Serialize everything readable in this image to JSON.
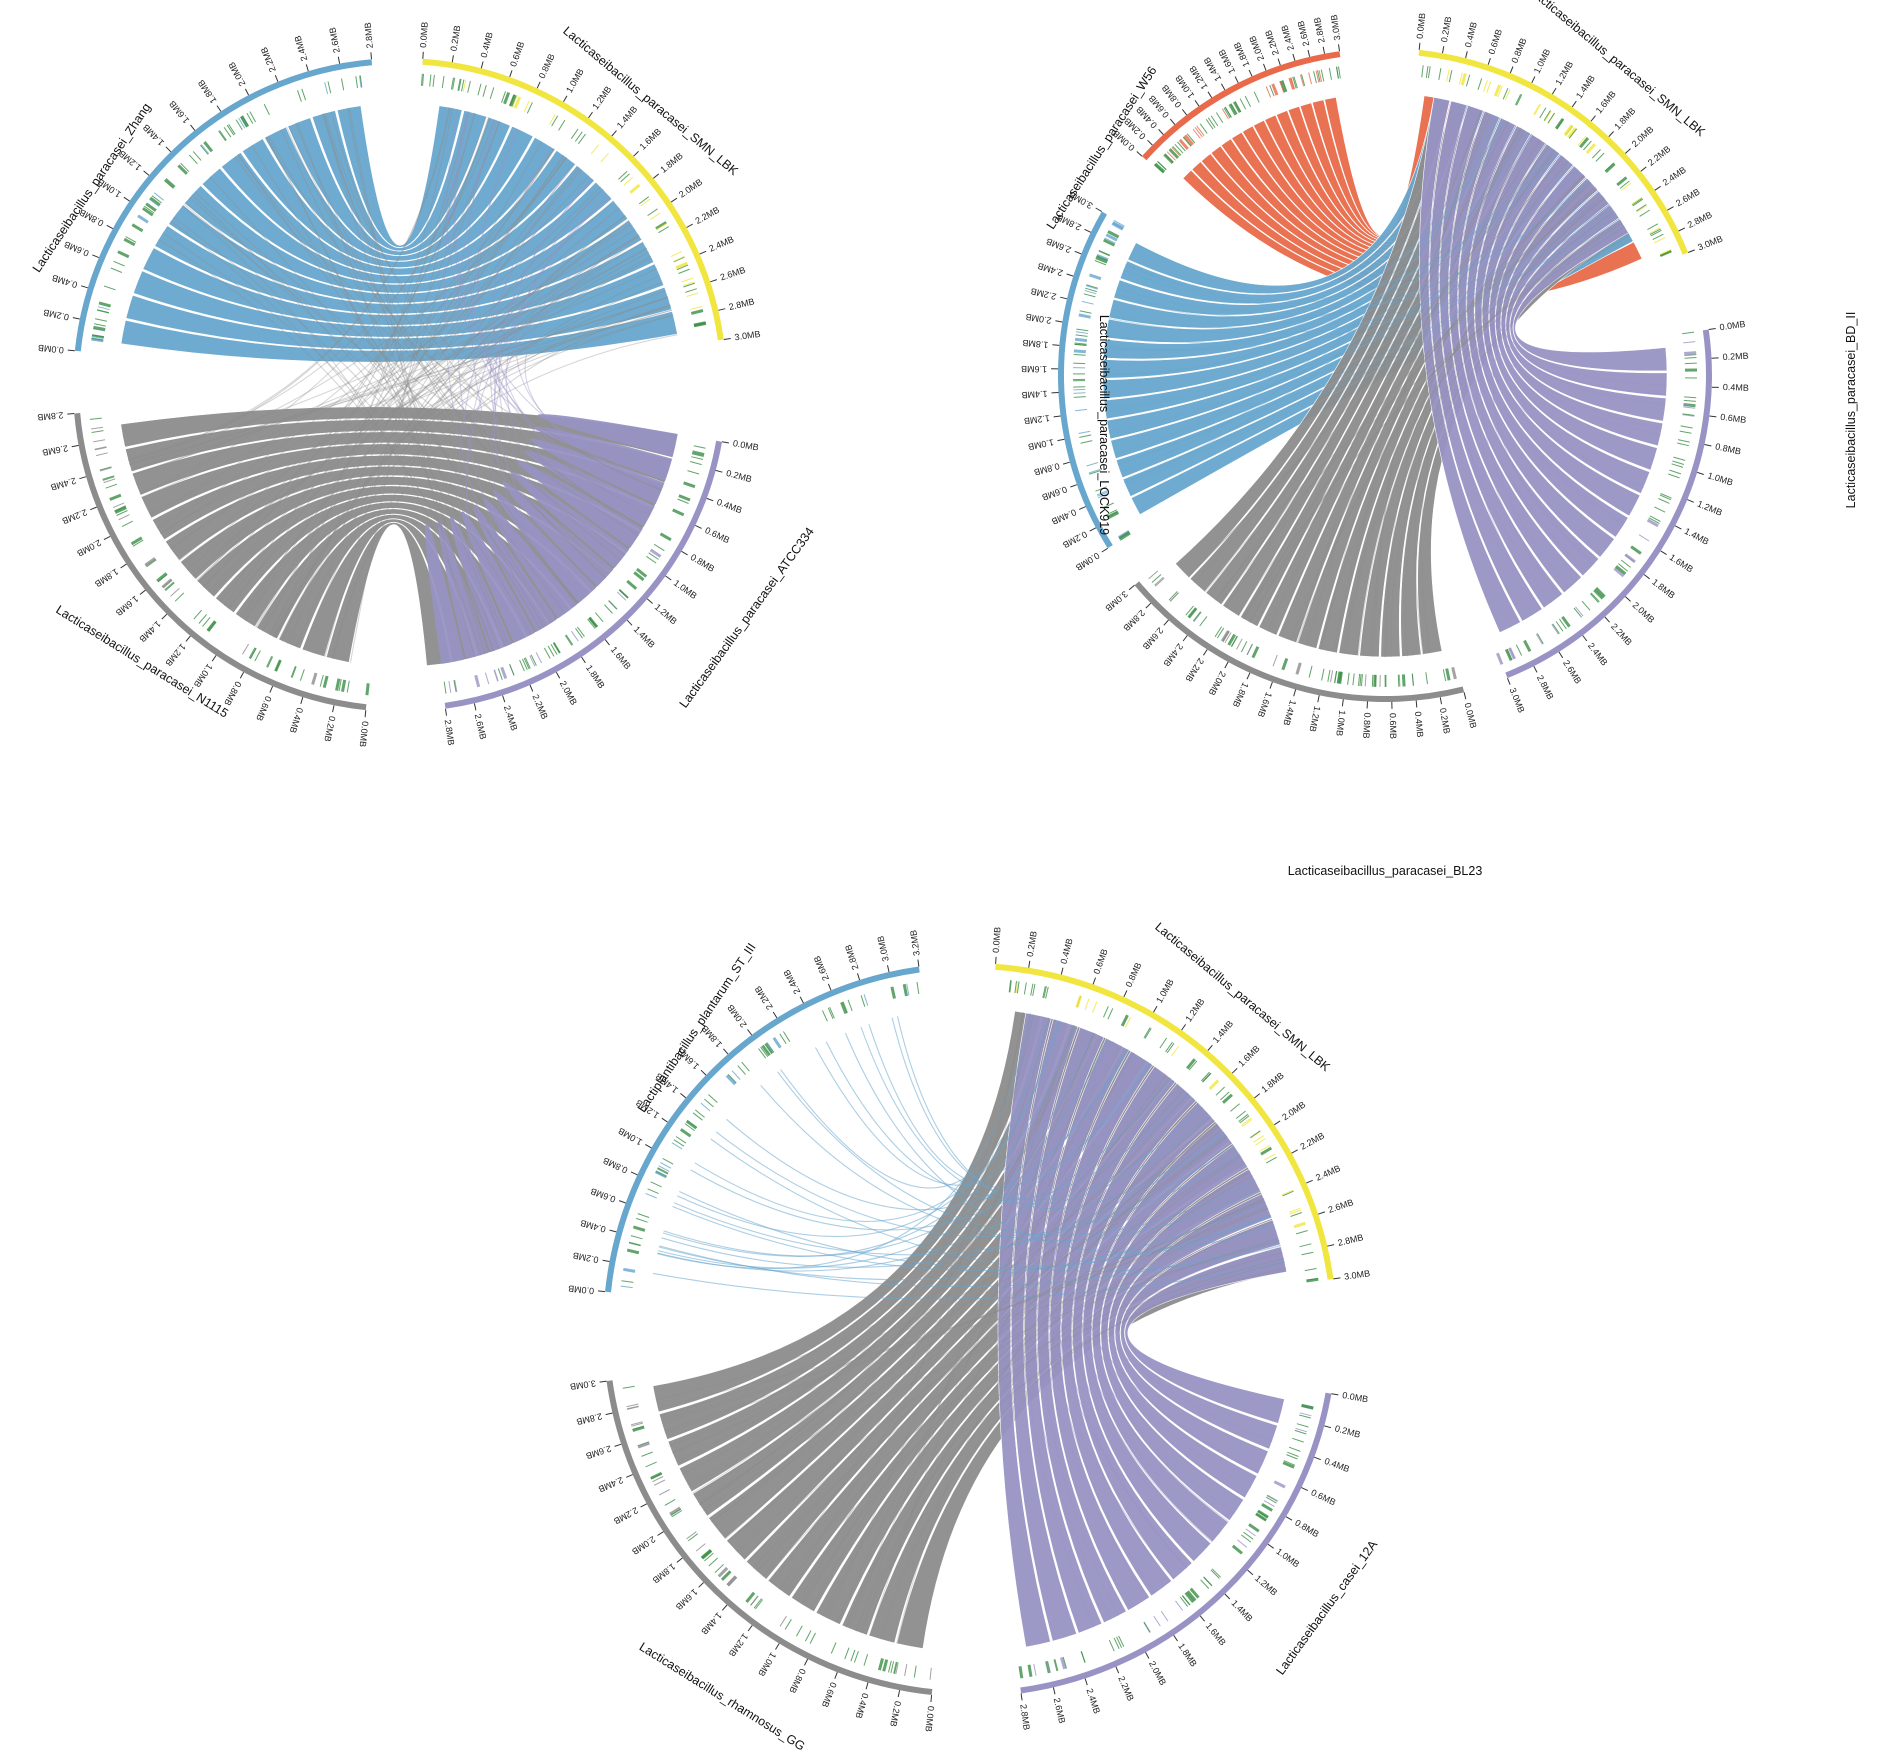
{
  "colors": {
    "blue": "#67a6cd",
    "gray": "#8c8c8c",
    "purple": "#9893c4",
    "yellow": "#f1e63f",
    "red": "#e86a4a",
    "green": "#3a8f45",
    "tick": "#333333"
  },
  "panels": [
    {
      "id": "panel-a",
      "genomes": [
        {
          "name": "Lacticaseibacillus_paracasei_SMN_LBK",
          "ticks": [
            "0.0MB",
            "0.2MB",
            "0.4MB",
            "0.6MB",
            "0.8MB",
            "1.0MB",
            "1.2MB",
            "1.4MB",
            "1.6MB",
            "1.8MB",
            "2.0MB",
            "2.2MB",
            "2.4MB",
            "2.6MB",
            "2.8MB",
            "3.0MB"
          ],
          "color": "yellow",
          "role": "reference"
        },
        {
          "name": "Lacticaseibacillus_paracasei_ATCC334",
          "ticks": [
            "0.0MB",
            "0.2MB",
            "0.4MB",
            "0.6MB",
            "0.8MB",
            "1.0MB",
            "1.2MB",
            "1.4MB",
            "1.6MB",
            "1.8MB",
            "2.0MB",
            "2.2MB",
            "2.4MB",
            "2.6MB",
            "2.8MB"
          ],
          "color": "purple",
          "role": "query"
        },
        {
          "name": "Lacticaseibacillus_paracasei_N1115",
          "ticks": [
            "0.0MB",
            "0.2MB",
            "0.4MB",
            "0.6MB",
            "0.8MB",
            "1.0MB",
            "1.2MB",
            "1.4MB",
            "1.6MB",
            "1.8MB",
            "2.0MB",
            "2.2MB",
            "2.4MB",
            "2.6MB",
            "2.8MB"
          ],
          "color": "gray",
          "role": "query"
        },
        {
          "name": "Lacticaseibacillus_paracasei_Zhang",
          "ticks": [
            "0.0MB",
            "0.2MB",
            "0.4MB",
            "0.6MB",
            "0.8MB",
            "1.0MB",
            "1.2MB",
            "1.4MB",
            "1.6MB",
            "1.8MB",
            "2.0MB",
            "2.2MB",
            "2.4MB",
            "2.6MB",
            "2.8MB"
          ],
          "color": "blue",
          "role": "query"
        }
      ]
    },
    {
      "id": "panel-b",
      "genomes": [
        {
          "name": "Lacticaseibacillus_paracasei_SMN_LBK",
          "ticks": [
            "0.0MB",
            "0.2MB",
            "0.4MB",
            "0.6MB",
            "0.8MB",
            "1.0MB",
            "1.2MB",
            "1.4MB",
            "1.6MB",
            "1.8MB",
            "2.0MB",
            "2.2MB",
            "2.4MB",
            "2.6MB",
            "2.8MB",
            "3.0MB"
          ],
          "color": "yellow",
          "role": "reference"
        },
        {
          "name": "Lacticaseibacillus_paracasei_BD_II",
          "ticks": [
            "0.0MB",
            "0.2MB",
            "0.4MB",
            "0.6MB",
            "0.8MB",
            "1.0MB",
            "1.2MB",
            "1.4MB",
            "1.6MB",
            "1.8MB",
            "2.0MB",
            "2.2MB",
            "2.4MB",
            "2.6MB",
            "2.8MB",
            "3.0MB"
          ],
          "color": "purple",
          "role": "query"
        },
        {
          "name": "Lacticaseibacillus_paracasei_BL23",
          "ticks": [
            "0.0MB",
            "0.2MB",
            "0.4MB",
            "0.6MB",
            "0.8MB",
            "1.0MB",
            "1.2MB",
            "1.4MB",
            "1.6MB",
            "1.8MB",
            "2.0MB",
            "2.2MB",
            "2.4MB",
            "2.6MB",
            "2.8MB",
            "3.0MB"
          ],
          "color": "gray",
          "role": "query"
        },
        {
          "name": "Lacticaseibacillus_paracasei_LOCK919",
          "ticks": [
            "0.0MB",
            "0.2MB",
            "0.4MB",
            "0.6MB",
            "0.8MB",
            "1.0MB",
            "1.2MB",
            "1.4MB",
            "1.6MB",
            "1.8MB",
            "2.0MB",
            "2.2MB",
            "2.4MB",
            "2.6MB",
            "2.8MB",
            "3.0MB"
          ],
          "color": "blue",
          "role": "query"
        },
        {
          "name": "Lacticaseibacillus_paracasei_W56",
          "ticks": [
            "0.0MB",
            "0.2MB",
            "0.4MB",
            "0.6MB",
            "0.8MB",
            "1.0MB",
            "1.2MB",
            "1.4MB",
            "1.6MB",
            "1.8MB",
            "2.0MB",
            "2.2MB",
            "2.4MB",
            "2.6MB",
            "2.8MB",
            "3.0MB"
          ],
          "color": "red",
          "role": "query"
        }
      ]
    },
    {
      "id": "panel-c",
      "genomes": [
        {
          "name": "Lacticaseibacillus_paracasei_SMN_LBK",
          "ticks": [
            "0.0MB",
            "0.2MB",
            "0.4MB",
            "0.6MB",
            "0.8MB",
            "1.0MB",
            "1.2MB",
            "1.4MB",
            "1.6MB",
            "1.8MB",
            "2.0MB",
            "2.2MB",
            "2.4MB",
            "2.6MB",
            "2.8MB",
            "3.0MB"
          ],
          "color": "yellow",
          "role": "reference"
        },
        {
          "name": "Lacticaseibacillus_casei_12A",
          "ticks": [
            "0.0MB",
            "0.2MB",
            "0.4MB",
            "0.6MB",
            "0.8MB",
            "1.0MB",
            "1.2MB",
            "1.4MB",
            "1.6MB",
            "1.8MB",
            "2.0MB",
            "2.2MB",
            "2.4MB",
            "2.6MB",
            "2.8MB"
          ],
          "color": "purple",
          "role": "query"
        },
        {
          "name": "Lacticaseibacillus_rhamnosus_GG",
          "ticks": [
            "0.0MB",
            "0.2MB",
            "0.4MB",
            "0.6MB",
            "0.8MB",
            "1.0MB",
            "1.2MB",
            "1.4MB",
            "1.6MB",
            "1.8MB",
            "2.0MB",
            "2.2MB",
            "2.4MB",
            "2.6MB",
            "2.8MB",
            "3.0MB"
          ],
          "color": "gray",
          "role": "query"
        },
        {
          "name": "Lactiplantibacillus_plantarum_ST_III",
          "ticks": [
            "0.0MB",
            "0.2MB",
            "0.4MB",
            "0.6MB",
            "0.8MB",
            "1.0MB",
            "1.2MB",
            "1.4MB",
            "1.6MB",
            "1.8MB",
            "2.0MB",
            "2.2MB",
            "2.4MB",
            "2.6MB",
            "2.8MB",
            "3.0MB",
            "3.2MB"
          ],
          "color": "blue",
          "role": "query"
        }
      ]
    }
  ]
}
